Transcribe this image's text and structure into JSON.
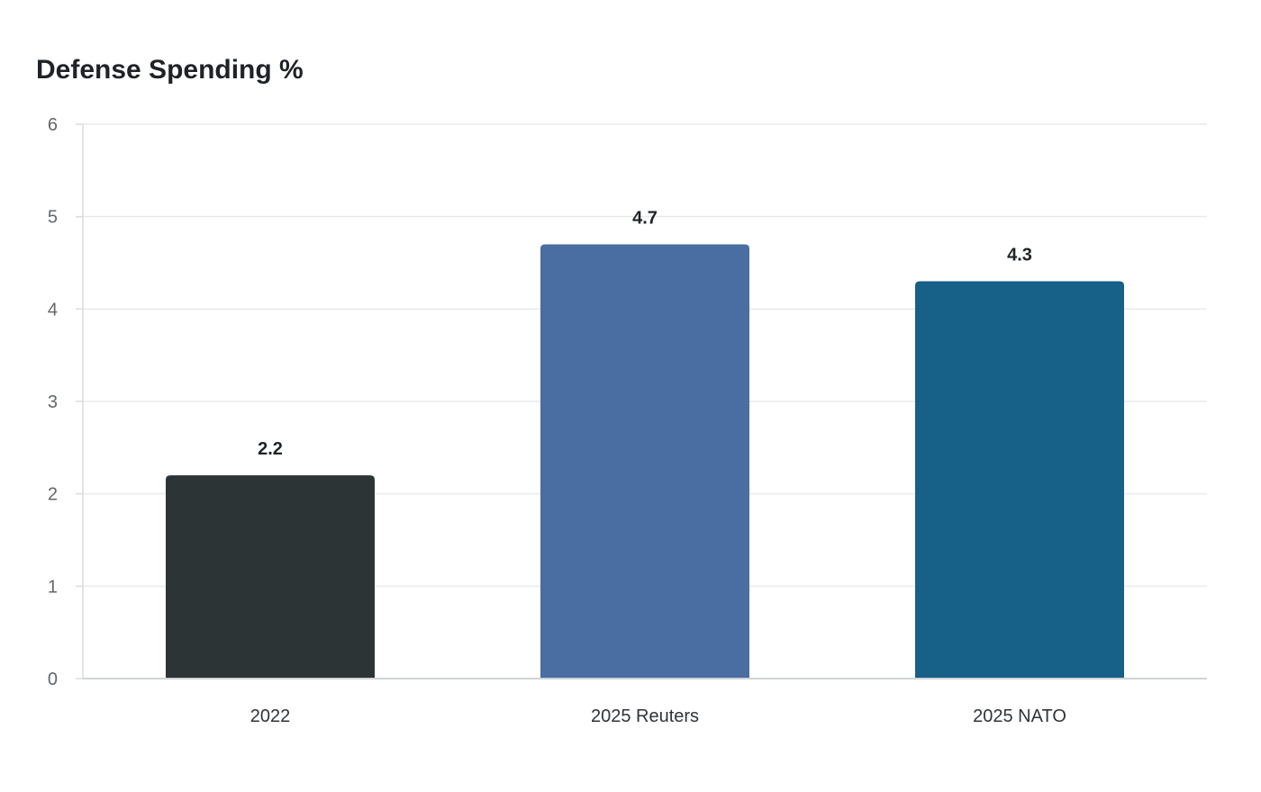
{
  "chart_data": {
    "type": "bar",
    "title": "Defense Spending %",
    "xlabel": "",
    "ylabel": "",
    "categories": [
      "2022",
      "2025 Reuters",
      "2025 NATO"
    ],
    "values": [
      2.2,
      4.7,
      4.3
    ],
    "data_labels": [
      "2.2",
      "4.7",
      "4.3"
    ],
    "colors": [
      "#2d3436",
      "#4a6ea2",
      "#176087"
    ],
    "ylim": [
      0,
      6
    ],
    "yticks": [
      0,
      1,
      2,
      3,
      4,
      5,
      6
    ],
    "grid": true,
    "legend": "none"
  }
}
